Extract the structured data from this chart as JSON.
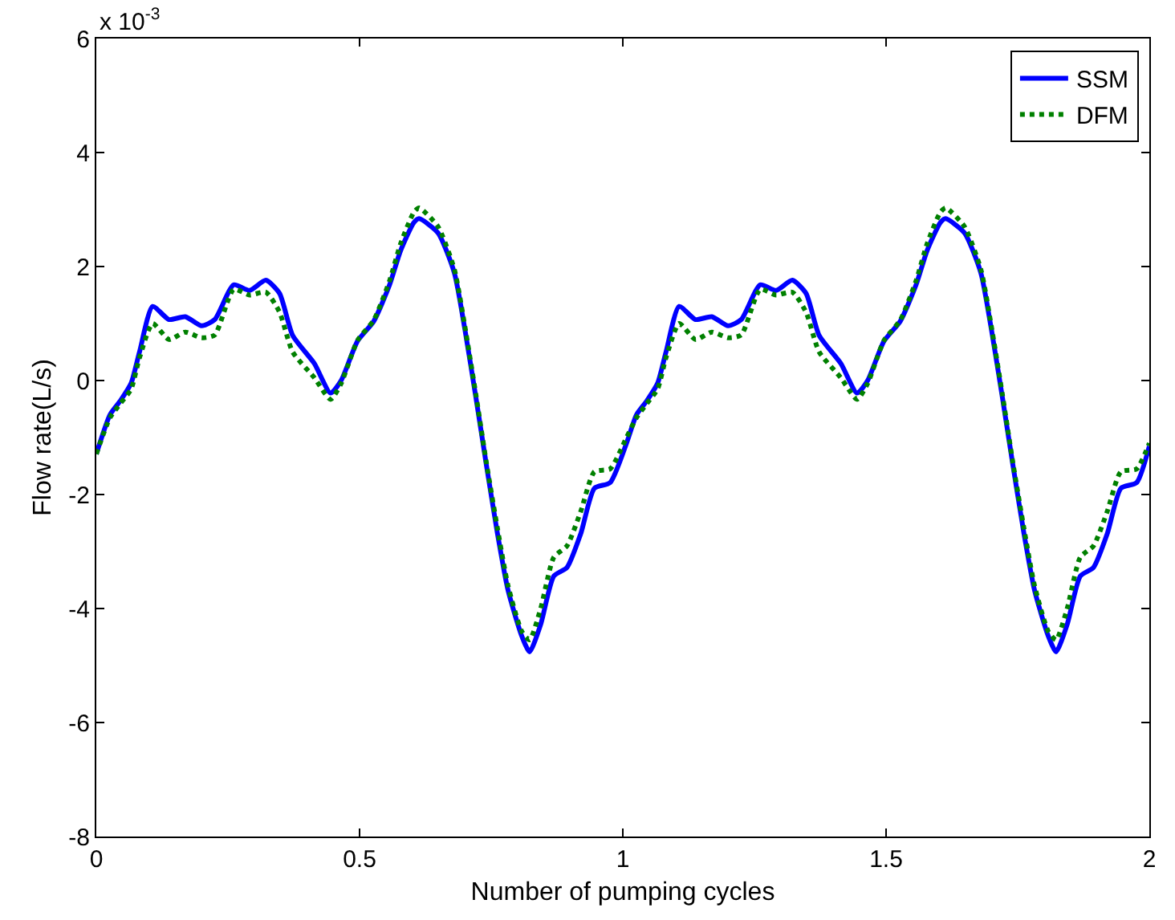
{
  "chart_data": {
    "type": "line",
    "xlabel": "Number of pumping cycles",
    "ylabel": "Flow rate(L/s)",
    "annotations": [
      "x 10$^{-3}$"
    ],
    "xlim": [
      0,
      2
    ],
    "xticks": [
      0,
      0.5,
      1,
      1.5,
      2
    ],
    "ylim": [
      -8,
      6
    ],
    "yticks": [
      -8,
      -6,
      -4,
      -2,
      0,
      2,
      4,
      6
    ],
    "legend": "top right",
    "marker": "none",
    "series": [
      {
        "name": "SSM",
        "color": "#0000ff",
        "line_style": "solid",
        "x": [
          0,
          0.026,
          0.046,
          0.066,
          0.082,
          0.107,
          0.138,
          0.169,
          0.2,
          0.225,
          0.261,
          0.291,
          0.322,
          0.348,
          0.373,
          0.414,
          0.445,
          0.465,
          0.496,
          0.527,
          0.557,
          0.578,
          0.603,
          0.613,
          0.649,
          0.68,
          0.7,
          0.721,
          0.741,
          0.762,
          0.782,
          0.808,
          0.823,
          0.844,
          0.869,
          0.894,
          0.92,
          0.946,
          0.976,
          1.007,
          1.026,
          1.046,
          1.066,
          1.082,
          1.107,
          1.138,
          1.169,
          1.2,
          1.225,
          1.261,
          1.291,
          1.322,
          1.348,
          1.373,
          1.414,
          1.445,
          1.465,
          1.496,
          1.527,
          1.557,
          1.578,
          1.603,
          1.613,
          1.649,
          1.68,
          1.7,
          1.721,
          1.741,
          1.762,
          1.782,
          1.808,
          1.823,
          1.844,
          1.869,
          1.894,
          1.92,
          1.946,
          1.976,
          2.0
        ],
        "values": [
          -1.29,
          -0.6,
          -0.35,
          -0.05,
          0.5,
          1.3,
          1.07,
          1.12,
          0.96,
          1.07,
          1.68,
          1.58,
          1.76,
          1.53,
          0.79,
          0.3,
          -0.22,
          0,
          0.69,
          1.04,
          1.68,
          2.28,
          2.77,
          2.84,
          2.59,
          1.89,
          0.9,
          -0.3,
          -1.49,
          -2.69,
          -3.68,
          -4.48,
          -4.76,
          -4.28,
          -3.43,
          -3.28,
          -2.69,
          -1.89,
          -1.79,
          -1.1,
          -0.6,
          -0.35,
          -0.05,
          0.5,
          1.3,
          1.07,
          1.12,
          0.96,
          1.07,
          1.68,
          1.58,
          1.76,
          1.53,
          0.79,
          0.3,
          -0.22,
          0,
          0.69,
          1.04,
          1.68,
          2.28,
          2.77,
          2.84,
          2.59,
          1.89,
          0.9,
          -0.3,
          -1.49,
          -2.69,
          -3.68,
          -4.48,
          -4.76,
          -4.28,
          -3.43,
          -3.28,
          -2.69,
          -1.89,
          -1.79,
          -1.15
        ]
      },
      {
        "name": "DFM",
        "color": "#008000",
        "line_style": "dotted",
        "x": [
          0,
          0.026,
          0.046,
          0.066,
          0.082,
          0.107,
          0.138,
          0.169,
          0.2,
          0.225,
          0.261,
          0.291,
          0.322,
          0.348,
          0.373,
          0.414,
          0.445,
          0.465,
          0.496,
          0.527,
          0.557,
          0.578,
          0.603,
          0.613,
          0.649,
          0.68,
          0.7,
          0.721,
          0.741,
          0.762,
          0.782,
          0.808,
          0.823,
          0.844,
          0.869,
          0.894,
          0.92,
          0.946,
          0.976,
          1.007,
          1.026,
          1.046,
          1.066,
          1.082,
          1.107,
          1.138,
          1.169,
          1.2,
          1.225,
          1.261,
          1.291,
          1.322,
          1.348,
          1.373,
          1.414,
          1.445,
          1.465,
          1.496,
          1.527,
          1.557,
          1.578,
          1.603,
          1.613,
          1.649,
          1.68,
          1.7,
          1.721,
          1.741,
          1.762,
          1.782,
          1.808,
          1.823,
          1.844,
          1.869,
          1.894,
          1.92,
          1.946,
          1.976,
          2.0
        ],
        "values": [
          -1.29,
          -0.65,
          -0.4,
          -0.15,
          0.4,
          1.0,
          0.72,
          0.85,
          0.75,
          0.8,
          1.6,
          1.5,
          1.55,
          1.2,
          0.5,
          0.05,
          -0.33,
          -0.05,
          0.7,
          1.06,
          1.75,
          2.4,
          2.95,
          3.03,
          2.7,
          1.95,
          0.95,
          -0.25,
          -1.45,
          -2.6,
          -3.6,
          -4.4,
          -4.55,
          -4.0,
          -3.1,
          -2.9,
          -2.3,
          -1.6,
          -1.55,
          -1.0,
          -0.65,
          -0.4,
          -0.15,
          0.4,
          1.0,
          0.72,
          0.85,
          0.75,
          0.8,
          1.6,
          1.5,
          1.55,
          1.2,
          0.5,
          0.05,
          -0.33,
          -0.05,
          0.7,
          1.06,
          1.75,
          2.4,
          2.95,
          3.03,
          2.7,
          1.95,
          0.95,
          -0.25,
          -1.45,
          -2.6,
          -3.6,
          -4.4,
          -4.55,
          -4.0,
          -3.1,
          -2.9,
          -2.3,
          -1.6,
          -1.55,
          -1.1
        ]
      }
    ]
  }
}
